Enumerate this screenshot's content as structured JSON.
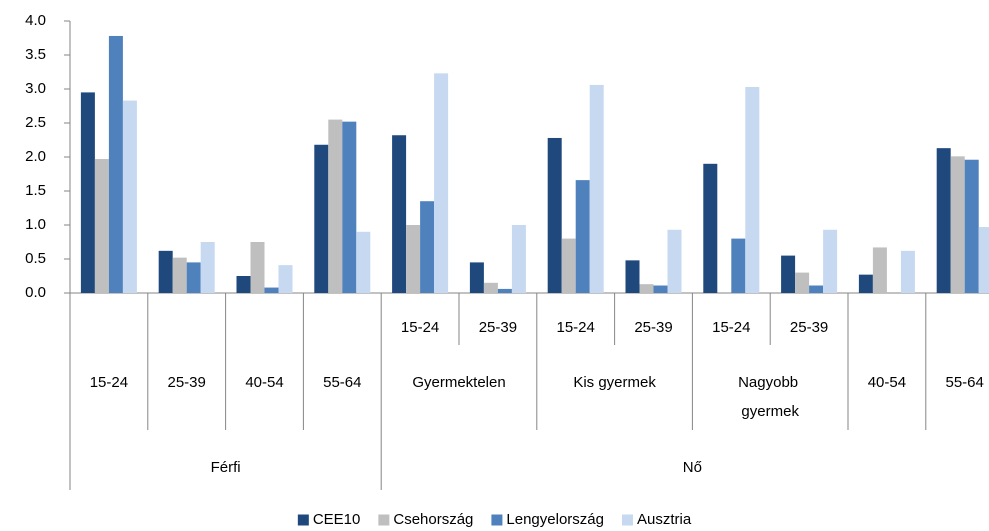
{
  "chart_data": {
    "type": "bar",
    "groups": [
      {
        "label": "Férfi",
        "items": [
          {
            "label": "15-24"
          },
          {
            "label": "25-39"
          },
          {
            "label": "40-54"
          },
          {
            "label": "55-64"
          }
        ]
      },
      {
        "label": "Nő",
        "items": [
          {
            "label": "Gyermektelen",
            "categories": [
              "15-24",
              "25-39"
            ]
          },
          {
            "label": "Kis gyermek",
            "categories": [
              "15-24",
              "25-39"
            ]
          },
          {
            "label": "Nagyobb gyermek",
            "categories": [
              "15-24",
              "25-39"
            ]
          },
          {
            "label": "40-54"
          },
          {
            "label": "55-64"
          }
        ]
      }
    ],
    "series": [
      {
        "name": "CEE10",
        "color": "#1f497d",
        "values": [
          2.95,
          0.62,
          0.25,
          2.18,
          2.32,
          0.45,
          2.28,
          0.48,
          1.9,
          0.55,
          0.27,
          2.13
        ]
      },
      {
        "name": "Csehország",
        "color": "#bfbfbf",
        "values": [
          1.97,
          0.52,
          0.75,
          2.55,
          1.0,
          0.15,
          0.8,
          0.13,
          0,
          0.3,
          0.67,
          2.01
        ]
      },
      {
        "name": "Lengyelország",
        "color": "#4f81bd",
        "values": [
          3.78,
          0.45,
          0.08,
          2.52,
          1.35,
          0.06,
          1.66,
          0.11,
          0.8,
          0.11,
          0,
          1.96
        ]
      },
      {
        "name": "Ausztria",
        "color": "#c6d9f1",
        "values": [
          2.83,
          0.75,
          0.41,
          0.9,
          3.23,
          1.0,
          3.06,
          0.93,
          3.03,
          0.93,
          0.62,
          0.97
        ]
      }
    ],
    "ylim": [
      0,
      4
    ],
    "yticks": [
      {
        "value": 0,
        "label": "0.0"
      },
      0.5,
      {
        "value": 1,
        "label": "1.0"
      },
      1.5,
      {
        "value": 2,
        "label": "2.0"
      },
      2.5,
      {
        "value": 3,
        "label": "3.0"
      },
      3.5,
      {
        "value": 4,
        "label": "4.0"
      }
    ],
    "grid": false,
    "legend": "bottom"
  }
}
